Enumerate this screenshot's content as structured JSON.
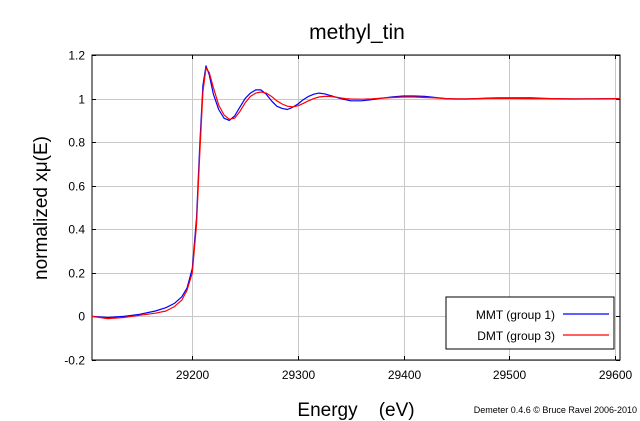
{
  "chart_data": {
    "type": "line",
    "title": "methyl_tin",
    "xlabel": "Energy    (eV)",
    "ylabel": "normalized xμ(E)",
    "credit": "Demeter 0.4.6 © Bruce Ravel 2006-2010",
    "xlim": [
      29105,
      29605
    ],
    "ylim": [
      -0.2,
      1.2
    ],
    "xticks": [
      29200,
      29300,
      29400,
      29500,
      29600
    ],
    "xtick_labels": [
      "29200",
      "29300",
      "29400",
      "29500",
      "29600"
    ],
    "yticks": [
      -0.2,
      0,
      0.2,
      0.4,
      0.6,
      0.8,
      1,
      1.2
    ],
    "ytick_labels": [
      "-0.2",
      "0",
      "0.2",
      "0.4",
      "0.6",
      "0.8",
      "1",
      "1.2"
    ],
    "grid": true,
    "legend_position": "bottom-right",
    "series": [
      {
        "name": "MMT (group 1)",
        "color": "#0000ff",
        "x": [
          29105,
          29120,
          29135,
          29150,
          29165,
          29175,
          29183,
          29190,
          29195,
          29200,
          29204,
          29207,
          29210,
          29213,
          29216,
          29220,
          29225,
          29230,
          29235,
          29240,
          29245,
          29250,
          29255,
          29260,
          29265,
          29270,
          29275,
          29280,
          29285,
          29290,
          29295,
          29300,
          29305,
          29310,
          29315,
          29320,
          29325,
          29330,
          29335,
          29340,
          29345,
          29350,
          29360,
          29370,
          29380,
          29390,
          29400,
          29410,
          29420,
          29430,
          29440,
          29450,
          29460,
          29470,
          29480,
          29490,
          29500,
          29520,
          29540,
          29560,
          29580,
          29605
        ],
        "y": [
          0.0,
          -0.005,
          0.0,
          0.01,
          0.025,
          0.04,
          0.06,
          0.09,
          0.13,
          0.22,
          0.45,
          0.78,
          1.06,
          1.15,
          1.11,
          1.02,
          0.95,
          0.91,
          0.9,
          0.92,
          0.96,
          1.0,
          1.025,
          1.04,
          1.04,
          1.02,
          0.99,
          0.965,
          0.955,
          0.95,
          0.96,
          0.975,
          0.995,
          1.01,
          1.02,
          1.025,
          1.022,
          1.015,
          1.008,
          1.0,
          0.995,
          0.99,
          0.99,
          0.995,
          1.002,
          1.008,
          1.012,
          1.012,
          1.01,
          1.005,
          1.0,
          0.998,
          0.998,
          1.0,
          1.002,
          1.003,
          1.003,
          1.003,
          1.0,
          0.998,
          0.999,
          1.0
        ]
      },
      {
        "name": "DMT (group 3)",
        "color": "#ff0000",
        "x": [
          29105,
          29120,
          29135,
          29150,
          29165,
          29175,
          29183,
          29190,
          29195,
          29200,
          29204,
          29207,
          29210,
          29213,
          29216,
          29220,
          29225,
          29230,
          29235,
          29240,
          29245,
          29250,
          29255,
          29260,
          29265,
          29270,
          29275,
          29280,
          29285,
          29290,
          29295,
          29300,
          29305,
          29310,
          29315,
          29320,
          29325,
          29330,
          29335,
          29340,
          29345,
          29350,
          29360,
          29370,
          29380,
          29390,
          29400,
          29410,
          29420,
          29430,
          29440,
          29450,
          29460,
          29470,
          29480,
          29490,
          29500,
          29520,
          29540,
          29560,
          29580,
          29605
        ],
        "y": [
          0.0,
          -0.01,
          -0.005,
          0.005,
          0.015,
          0.025,
          0.045,
          0.075,
          0.12,
          0.2,
          0.42,
          0.74,
          1.03,
          1.14,
          1.12,
          1.05,
          0.97,
          0.925,
          0.905,
          0.91,
          0.94,
          0.98,
          1.01,
          1.025,
          1.03,
          1.025,
          1.01,
          0.99,
          0.975,
          0.965,
          0.962,
          0.967,
          0.978,
          0.99,
          1.0,
          1.007,
          1.01,
          1.01,
          1.007,
          1.003,
          1.0,
          0.998,
          0.997,
          0.999,
          1.002,
          1.005,
          1.007,
          1.007,
          1.005,
          1.003,
          1.0,
          0.999,
          0.999,
          1.0,
          1.001,
          1.001,
          1.001,
          1.0,
          1.0,
          0.999,
          0.999,
          1.0
        ]
      }
    ]
  }
}
